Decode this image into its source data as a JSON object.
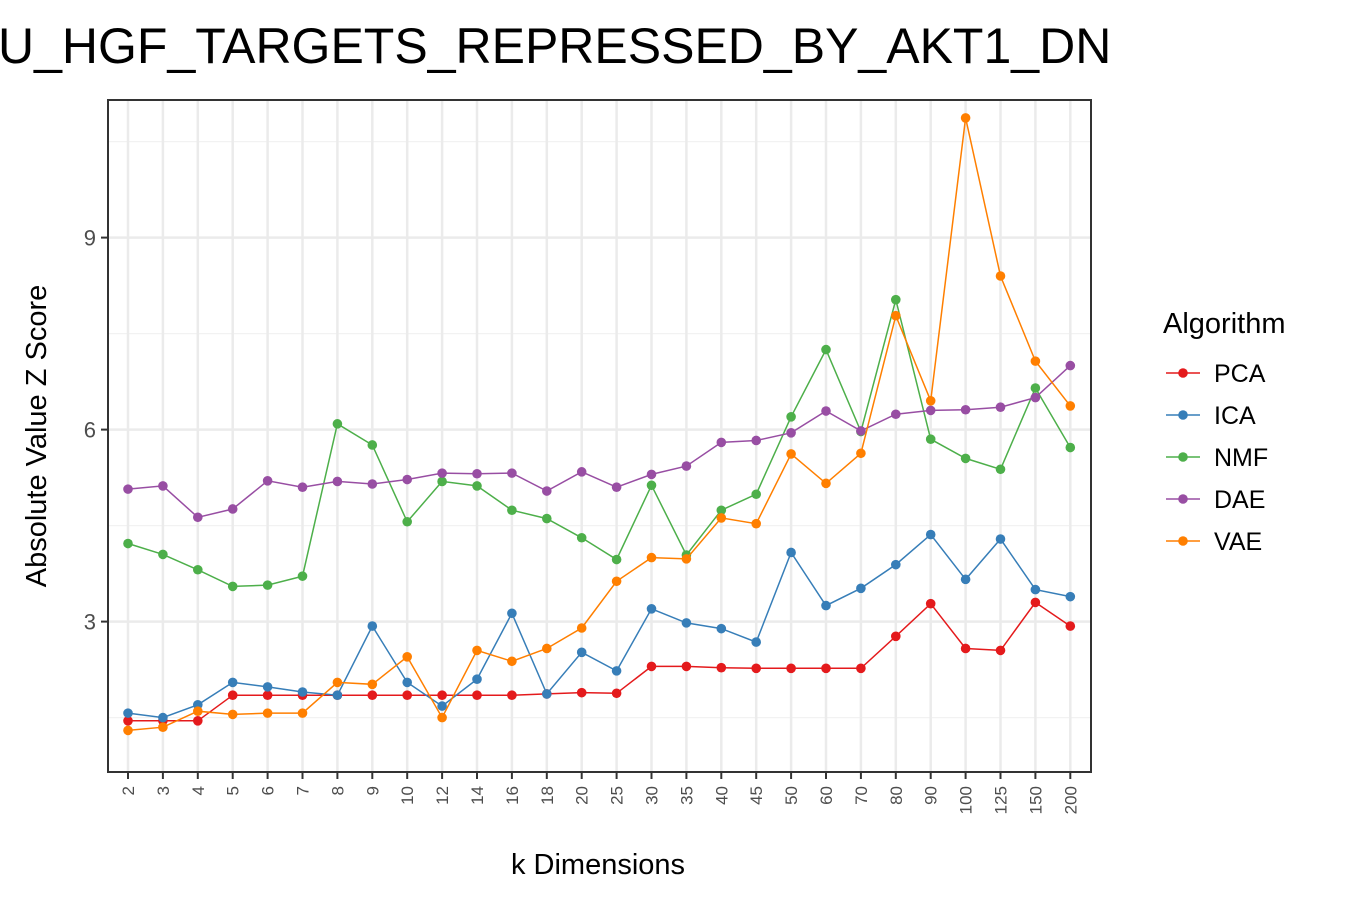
{
  "chart_data": {
    "type": "line",
    "title": "U_HGF_TARGETS_REPRESSED_BY_AKT1_DN",
    "xlabel": "k Dimensions",
    "ylabel": "Absolute Value Z Score",
    "categories": [
      "2",
      "3",
      "4",
      "5",
      "6",
      "7",
      "8",
      "9",
      "10",
      "12",
      "14",
      "16",
      "18",
      "20",
      "25",
      "30",
      "35",
      "40",
      "45",
      "50",
      "60",
      "70",
      "80",
      "90",
      "100",
      "125",
      "150",
      "200"
    ],
    "y_ticks": [
      3,
      6,
      9
    ],
    "ylim": [
      0.65,
      11.15
    ],
    "grid": true,
    "legend_title": "Algorithm",
    "legend_position": "right",
    "series": [
      {
        "name": "PCA",
        "color": "#E41A1C",
        "values": [
          1.45,
          1.45,
          1.45,
          1.85,
          1.85,
          1.85,
          1.85,
          1.85,
          1.85,
          1.85,
          1.85,
          1.85,
          1.87,
          1.89,
          1.88,
          2.3,
          2.3,
          2.28,
          2.27,
          2.27,
          2.27,
          2.27,
          2.77,
          3.28,
          2.58,
          2.55,
          3.3,
          2.93
        ]
      },
      {
        "name": "ICA",
        "color": "#377EB8",
        "values": [
          1.57,
          1.5,
          1.7,
          2.05,
          1.98,
          1.9,
          1.85,
          2.93,
          2.05,
          1.68,
          2.1,
          3.13,
          1.87,
          2.52,
          2.23,
          3.2,
          2.98,
          2.89,
          2.68,
          4.08,
          3.25,
          3.52,
          3.89,
          4.36,
          3.66,
          4.29,
          3.5,
          3.39
        ]
      },
      {
        "name": "NMF",
        "color": "#4DAF4A",
        "values": [
          4.22,
          4.05,
          3.81,
          3.55,
          3.57,
          3.71,
          6.09,
          5.76,
          4.56,
          5.19,
          5.12,
          4.74,
          4.61,
          4.31,
          3.97,
          5.13,
          4.04,
          4.74,
          4.99,
          6.2,
          7.25,
          5.97,
          8.03,
          5.85,
          5.55,
          5.38,
          6.65,
          5.72
        ]
      },
      {
        "name": "DAE",
        "color": "#984EA3",
        "values": [
          5.07,
          5.12,
          4.63,
          4.76,
          5.2,
          5.1,
          5.19,
          5.15,
          5.22,
          5.32,
          5.31,
          5.32,
          5.04,
          5.34,
          5.1,
          5.3,
          5.43,
          5.8,
          5.83,
          5.95,
          6.29,
          5.98,
          6.24,
          6.3,
          6.31,
          6.35,
          6.5,
          7.0
        ]
      },
      {
        "name": "VAE",
        "color": "#FF7F00",
        "values": [
          1.3,
          1.35,
          1.6,
          1.55,
          1.57,
          1.57,
          2.05,
          2.02,
          2.45,
          1.5,
          2.55,
          2.38,
          2.58,
          2.9,
          3.63,
          4.0,
          3.98,
          4.62,
          4.53,
          5.62,
          5.16,
          5.63,
          7.78,
          6.45,
          10.87,
          8.4,
          7.07,
          6.37
        ]
      }
    ]
  }
}
